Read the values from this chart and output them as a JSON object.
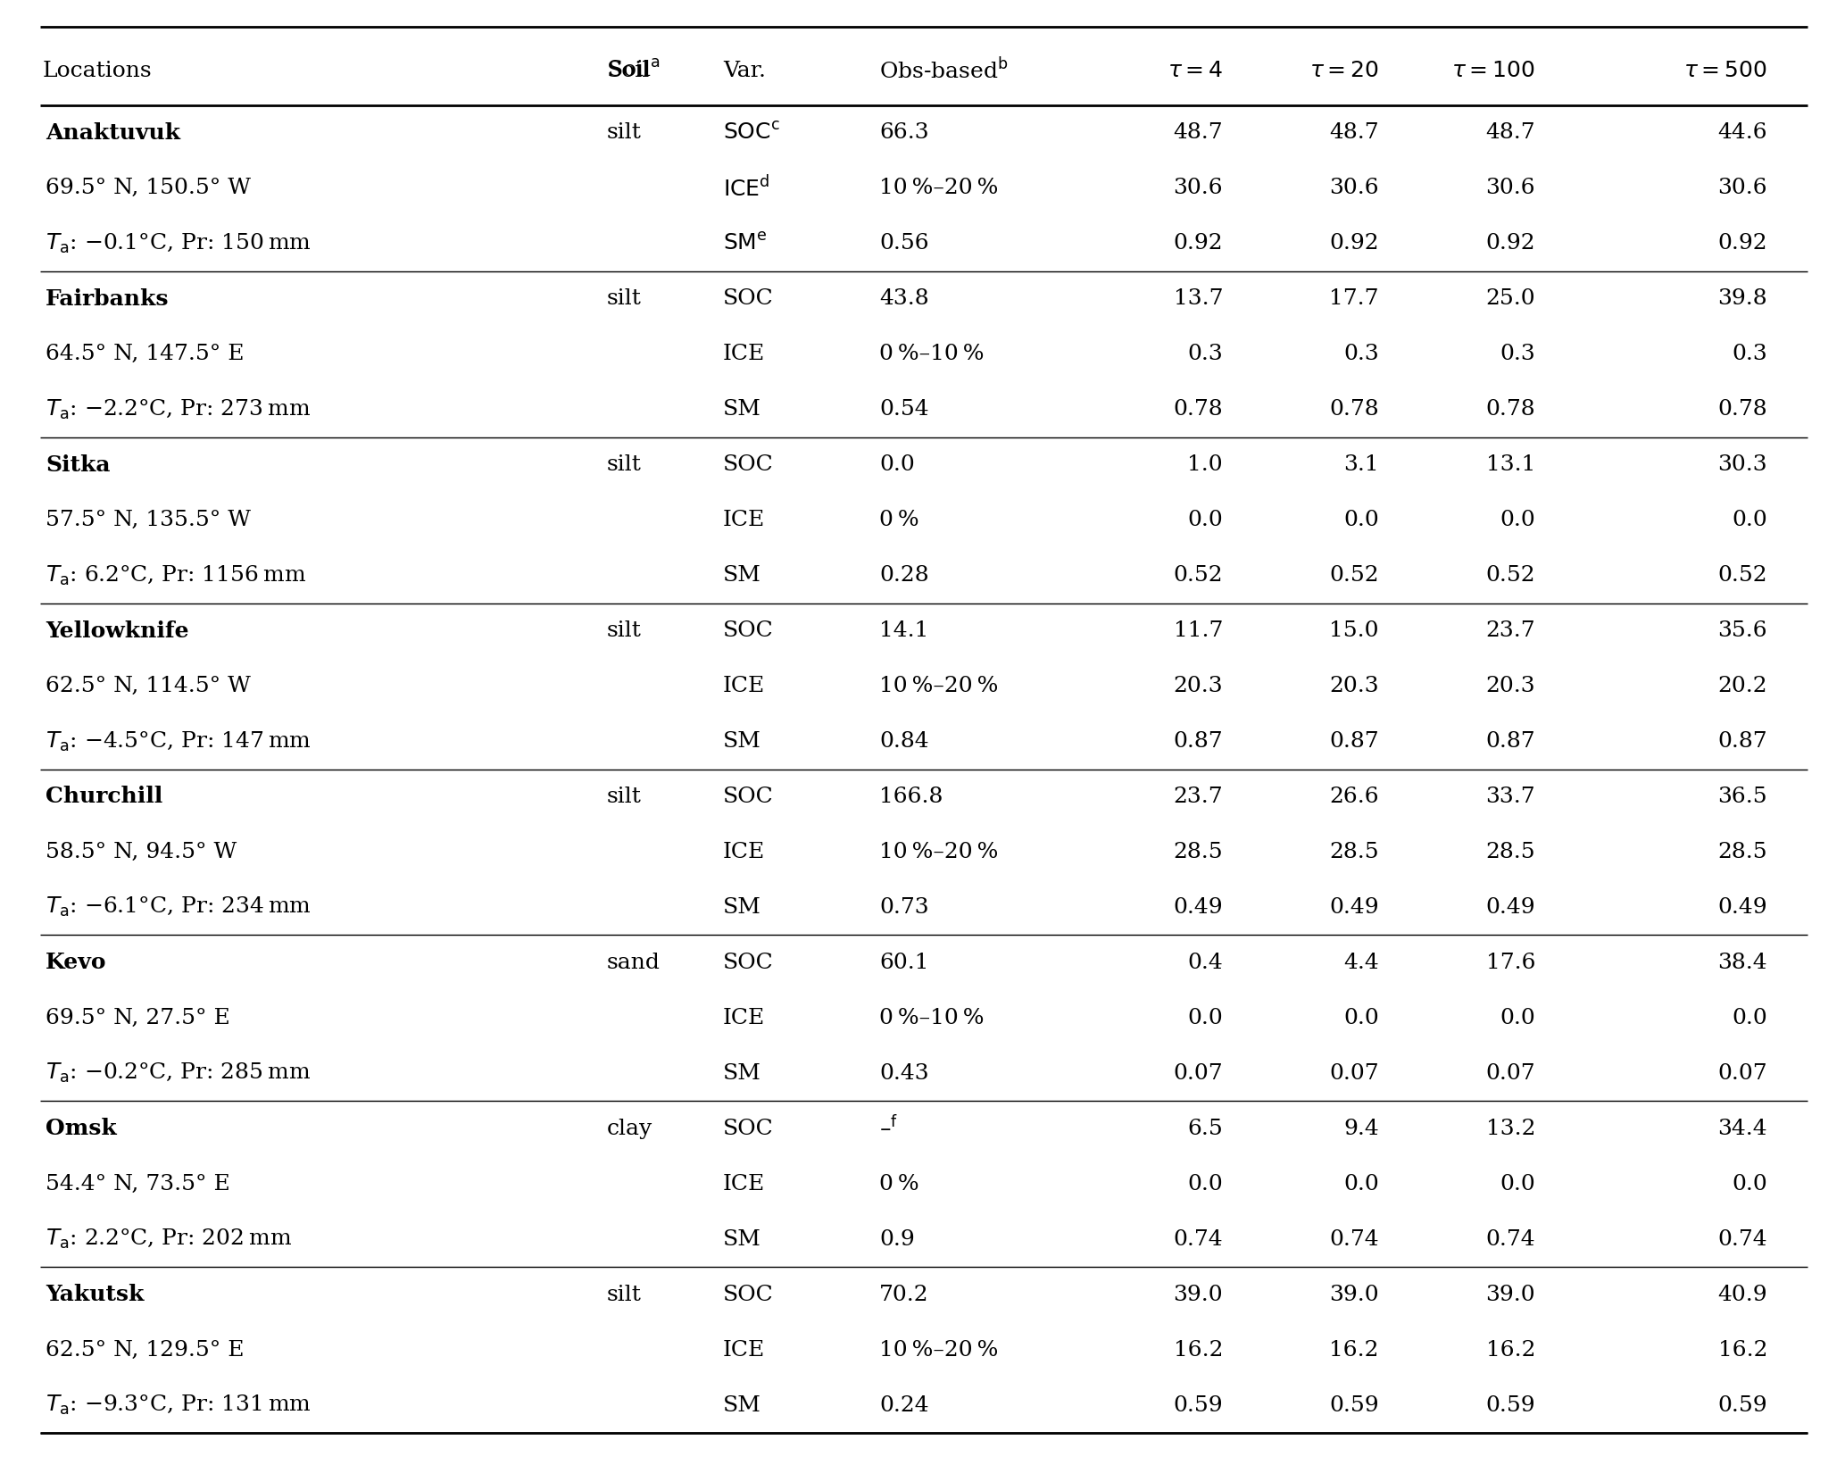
{
  "locations": [
    {
      "name": "Anaktuvuk",
      "line2": "69.5° N, 150.5° W",
      "line3": ": −0.1°C, Pr: 150 mm",
      "soil": "silt",
      "rows": [
        {
          "var": "SOC",
          "var_sup": "c",
          "obs": "66.3",
          "t4": "48.7",
          "t20": "48.7",
          "t100": "48.7",
          "t500": "44.6"
        },
        {
          "var": "ICE",
          "var_sup": "d",
          "obs": "10 %–20 %",
          "t4": "30.6",
          "t20": "30.6",
          "t100": "30.6",
          "t500": "30.6"
        },
        {
          "var": "SM",
          "var_sup": "e",
          "obs": "0.56",
          "t4": "0.92",
          "t20": "0.92",
          "t100": "0.92",
          "t500": "0.92"
        }
      ]
    },
    {
      "name": "Fairbanks",
      "line2": "64.5° N, 147.5° E",
      "line3": ": −2.2°C, Pr: 273 mm",
      "soil": "silt",
      "rows": [
        {
          "var": "SOC",
          "var_sup": "",
          "obs": "43.8",
          "t4": "13.7",
          "t20": "17.7",
          "t100": "25.0",
          "t500": "39.8"
        },
        {
          "var": "ICE",
          "var_sup": "",
          "obs": "0 %–10 %",
          "t4": "0.3",
          "t20": "0.3",
          "t100": "0.3",
          "t500": "0.3"
        },
        {
          "var": "SM",
          "var_sup": "",
          "obs": "0.54",
          "t4": "0.78",
          "t20": "0.78",
          "t100": "0.78",
          "t500": "0.78"
        }
      ]
    },
    {
      "name": "Sitka",
      "line2": "57.5° N, 135.5° W",
      "line3": ": 6.2°C, Pr: 1156 mm",
      "soil": "silt",
      "rows": [
        {
          "var": "SOC",
          "var_sup": "",
          "obs": "0.0",
          "t4": "1.0",
          "t20": "3.1",
          "t100": "13.1",
          "t500": "30.3"
        },
        {
          "var": "ICE",
          "var_sup": "",
          "obs": "0 %",
          "t4": "0.0",
          "t20": "0.0",
          "t100": "0.0",
          "t500": "0.0"
        },
        {
          "var": "SM",
          "var_sup": "",
          "obs": "0.28",
          "t4": "0.52",
          "t20": "0.52",
          "t100": "0.52",
          "t500": "0.52"
        }
      ]
    },
    {
      "name": "Yellowknife",
      "line2": "62.5° N, 114.5° W",
      "line3": ": −4.5°C, Pr: 147 mm",
      "soil": "silt",
      "rows": [
        {
          "var": "SOC",
          "var_sup": "",
          "obs": "14.1",
          "t4": "11.7",
          "t20": "15.0",
          "t100": "23.7",
          "t500": "35.6"
        },
        {
          "var": "ICE",
          "var_sup": "",
          "obs": "10 %–20 %",
          "t4": "20.3",
          "t20": "20.3",
          "t100": "20.3",
          "t500": "20.2"
        },
        {
          "var": "SM",
          "var_sup": "",
          "obs": "0.84",
          "t4": "0.87",
          "t20": "0.87",
          "t100": "0.87",
          "t500": "0.87"
        }
      ]
    },
    {
      "name": "Churchill",
      "line2": "58.5° N, 94.5° W",
      "line3": ": −6.1°C, Pr: 234 mm",
      "soil": "silt",
      "rows": [
        {
          "var": "SOC",
          "var_sup": "",
          "obs": "166.8",
          "t4": "23.7",
          "t20": "26.6",
          "t100": "33.7",
          "t500": "36.5"
        },
        {
          "var": "ICE",
          "var_sup": "",
          "obs": "10 %–20 %",
          "t4": "28.5",
          "t20": "28.5",
          "t100": "28.5",
          "t500": "28.5"
        },
        {
          "var": "SM",
          "var_sup": "",
          "obs": "0.73",
          "t4": "0.49",
          "t20": "0.49",
          "t100": "0.49",
          "t500": "0.49"
        }
      ]
    },
    {
      "name": "Kevo",
      "line2": "69.5° N, 27.5° E",
      "line3": ": −0.2°C, Pr: 285 mm",
      "soil": "sand",
      "rows": [
        {
          "var": "SOC",
          "var_sup": "",
          "obs": "60.1",
          "t4": "0.4",
          "t20": "4.4",
          "t100": "17.6",
          "t500": "38.4"
        },
        {
          "var": "ICE",
          "var_sup": "",
          "obs": "0 %–10 %",
          "t4": "0.0",
          "t20": "0.0",
          "t100": "0.0",
          "t500": "0.0"
        },
        {
          "var": "SM",
          "var_sup": "",
          "obs": "0.43",
          "t4": "0.07",
          "t20": "0.07",
          "t100": "0.07",
          "t500": "0.07"
        }
      ]
    },
    {
      "name": "Omsk",
      "line2": "54.4° N, 73.5° E",
      "line3": ": 2.2°C, Pr: 202 mm",
      "soil": "clay",
      "rows": [
        {
          "var": "SOC",
          "var_sup": "",
          "obs": "–",
          "obs_sup": "f",
          "t4": "6.5",
          "t20": "9.4",
          "t100": "13.2",
          "t500": "34.4"
        },
        {
          "var": "ICE",
          "var_sup": "",
          "obs": "0 %",
          "t4": "0.0",
          "t20": "0.0",
          "t100": "0.0",
          "t500": "0.0"
        },
        {
          "var": "SM",
          "var_sup": "",
          "obs": "0.9",
          "t4": "0.74",
          "t20": "0.74",
          "t100": "0.74",
          "t500": "0.74"
        }
      ]
    },
    {
      "name": "Yakutsk",
      "line2": "62.5° N, 129.5° E",
      "line3": ": −9.3°C, Pr: 131 mm",
      "soil": "silt",
      "rows": [
        {
          "var": "SOC",
          "var_sup": "",
          "obs": "70.2",
          "t4": "39.0",
          "t20": "39.0",
          "t100": "39.0",
          "t500": "40.9"
        },
        {
          "var": "ICE",
          "var_sup": "",
          "obs": "10 %–20 %",
          "t4": "16.2",
          "t20": "16.2",
          "t100": "16.2",
          "t500": "16.2"
        },
        {
          "var": "SM",
          "var_sup": "",
          "obs": "0.24",
          "t4": "0.59",
          "t20": "0.59",
          "t100": "0.59",
          "t500": "0.59"
        }
      ]
    }
  ],
  "bg_color": "#ffffff",
  "text_color": "#000000",
  "line_color": "#000000",
  "font_size": 18.0,
  "sup_font_size": 12.0
}
